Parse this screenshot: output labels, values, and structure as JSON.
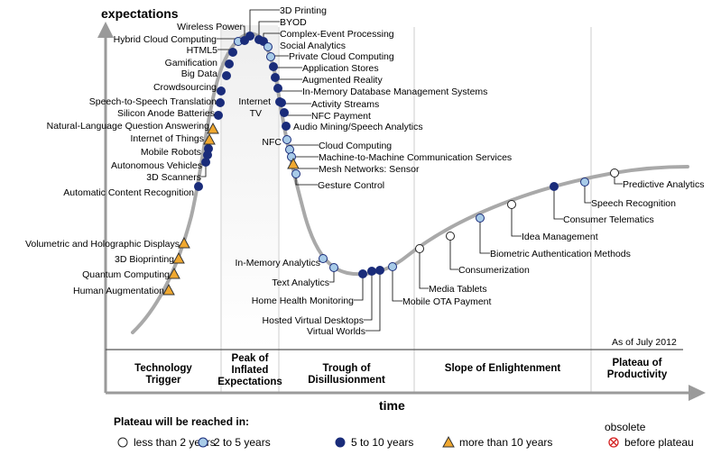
{
  "chart_data": {
    "type": "hype-cycle",
    "y_axis_label": "expectations",
    "x_axis_label": "time",
    "as_of": "As of July 2012",
    "phases": [
      [
        "Technology",
        "Trigger"
      ],
      [
        "Peak of",
        "Inflated",
        "Expectations"
      ],
      [
        "Trough of",
        "Disillusionment"
      ],
      [
        "Slope of Enlightenment"
      ],
      [
        "Plateau of",
        "Productivity"
      ]
    ],
    "legend": {
      "title": "Plateau will be reached in:",
      "items": [
        {
          "key": "lt2",
          "label": "less than 2 years",
          "shape": "circle",
          "fill": "#ffffff"
        },
        {
          "key": "2to5",
          "label": "2 to 5 years",
          "shape": "circle",
          "fill": "#a8cbe8"
        },
        {
          "key": "5to10",
          "label": "5 to 10 years",
          "shape": "circle",
          "fill": "#1a2c7a"
        },
        {
          "key": "gt10",
          "label": "more than 10 years",
          "shape": "triangle",
          "fill": "#f0a830"
        },
        {
          "key": "obsolete",
          "label": [
            "obsolete",
            "before plateau"
          ],
          "shape": "cross",
          "fill": "#ffffff"
        }
      ]
    },
    "technologies": [
      {
        "name": "Human Augmentation",
        "phase": "Technology Trigger",
        "category": "gt10"
      },
      {
        "name": "Quantum Computing",
        "phase": "Technology Trigger",
        "category": "gt10"
      },
      {
        "name": "3D Bioprinting",
        "phase": "Technology Trigger",
        "category": "gt10"
      },
      {
        "name": "Volumetric and Holographic Displays",
        "phase": "Technology Trigger",
        "category": "gt10"
      },
      {
        "name": "Automatic Content Recognition",
        "phase": "Technology Trigger",
        "category": "5to10"
      },
      {
        "name": "3D Scanners",
        "phase": "Technology Trigger",
        "category": "5to10"
      },
      {
        "name": "Autonomous Vehicles",
        "phase": "Technology Trigger",
        "category": "5to10"
      },
      {
        "name": "Mobile Robots",
        "phase": "Technology Trigger",
        "category": "5to10"
      },
      {
        "name": "Internet of Things",
        "phase": "Technology Trigger",
        "category": "gt10"
      },
      {
        "name": "Natural-Language Question Answering",
        "phase": "Technology Trigger",
        "category": "gt10"
      },
      {
        "name": "Silicon Anode Batteries",
        "phase": "Technology Trigger",
        "category": "5to10"
      },
      {
        "name": "Speech-to-Speech Translation",
        "phase": "Technology Trigger",
        "category": "5to10"
      },
      {
        "name": "Crowdsourcing",
        "phase": "Peak of Inflated Expectations",
        "category": "5to10"
      },
      {
        "name": "Big Data",
        "phase": "Peak of Inflated Expectations",
        "category": "5to10"
      },
      {
        "name": "Gamification",
        "phase": "Peak of Inflated Expectations",
        "category": "5to10"
      },
      {
        "name": "HTML5",
        "phase": "Peak of Inflated Expectations",
        "category": "5to10"
      },
      {
        "name": "Hybrid Cloud Computing",
        "phase": "Peak of Inflated Expectations",
        "category": "2to5"
      },
      {
        "name": "Wireless Power",
        "phase": "Peak of Inflated Expectations",
        "category": "5to10"
      },
      {
        "name": "3D Printing",
        "phase": "Peak of Inflated Expectations",
        "category": "5to10"
      },
      {
        "name": "BYOD",
        "phase": "Peak of Inflated Expectations",
        "category": "5to10"
      },
      {
        "name": "Complex-Event Processing",
        "phase": "Peak of Inflated Expectations",
        "category": "5to10"
      },
      {
        "name": "Social Analytics",
        "phase": "Peak of Inflated Expectations",
        "category": "2to5"
      },
      {
        "name": "Private Cloud Computing",
        "phase": "Peak of Inflated Expectations",
        "category": "2to5"
      },
      {
        "name": "Application Stores",
        "phase": "Peak of Inflated Expectations",
        "category": "5to10"
      },
      {
        "name": "Augmented Reality",
        "phase": "Peak of Inflated Expectations",
        "category": "5to10"
      },
      {
        "name": "In-Memory Database Management Systems",
        "phase": "Peak of Inflated Expectations",
        "category": "5to10"
      },
      {
        "name": "Activity Streams",
        "phase": "Peak of Inflated Expectations",
        "category": "5to10"
      },
      {
        "name": "Internet TV",
        "phase": "Peak of Inflated Expectations",
        "category": "5to10"
      },
      {
        "name": "NFC Payment",
        "phase": "Peak of Inflated Expectations",
        "category": "5to10"
      },
      {
        "name": "Audio Mining/Speech Analytics",
        "phase": "Peak of Inflated Expectations",
        "category": "5to10"
      },
      {
        "name": "NFC",
        "phase": "Trough of Disillusionment",
        "category": "2to5"
      },
      {
        "name": "Cloud Computing",
        "phase": "Trough of Disillusionment",
        "category": "2to5"
      },
      {
        "name": "Machine-to-Machine Communication Services",
        "phase": "Trough of Disillusionment",
        "category": "2to5"
      },
      {
        "name": "Mesh Networks: Sensor",
        "phase": "Trough of Disillusionment",
        "category": "gt10"
      },
      {
        "name": "Gesture Control",
        "phase": "Trough of Disillusionment",
        "category": "2to5"
      },
      {
        "name": "In-Memory Analytics",
        "phase": "Trough of Disillusionment",
        "category": "2to5"
      },
      {
        "name": "Text Analytics",
        "phase": "Trough of Disillusionment",
        "category": "2to5"
      },
      {
        "name": "Home Health Monitoring",
        "phase": "Trough of Disillusionment",
        "category": "5to10"
      },
      {
        "name": "Hosted Virtual Desktops",
        "phase": "Trough of Disillusionment",
        "category": "5to10"
      },
      {
        "name": "Virtual Worlds",
        "phase": "Trough of Disillusionment",
        "category": "5to10"
      },
      {
        "name": "Mobile OTA Payment",
        "phase": "Trough of Disillusionment",
        "category": "2to5"
      },
      {
        "name": "Media Tablets",
        "phase": "Slope of Enlightenment",
        "category": "lt2"
      },
      {
        "name": "Consumerization",
        "phase": "Slope of Enlightenment",
        "category": "lt2"
      },
      {
        "name": "Biometric Authentication Methods",
        "phase": "Slope of Enlightenment",
        "category": "2to5"
      },
      {
        "name": "Idea Management",
        "phase": "Slope of Enlightenment",
        "category": "lt2"
      },
      {
        "name": "Consumer Telematics",
        "phase": "Slope of Enlightenment",
        "category": "5to10"
      },
      {
        "name": "Speech Recognition",
        "phase": "Slope of Enlightenment",
        "category": "2to5"
      },
      {
        "name": "Predictive Analytics",
        "phase": "Plateau of Productivity",
        "category": "lt2"
      }
    ]
  }
}
